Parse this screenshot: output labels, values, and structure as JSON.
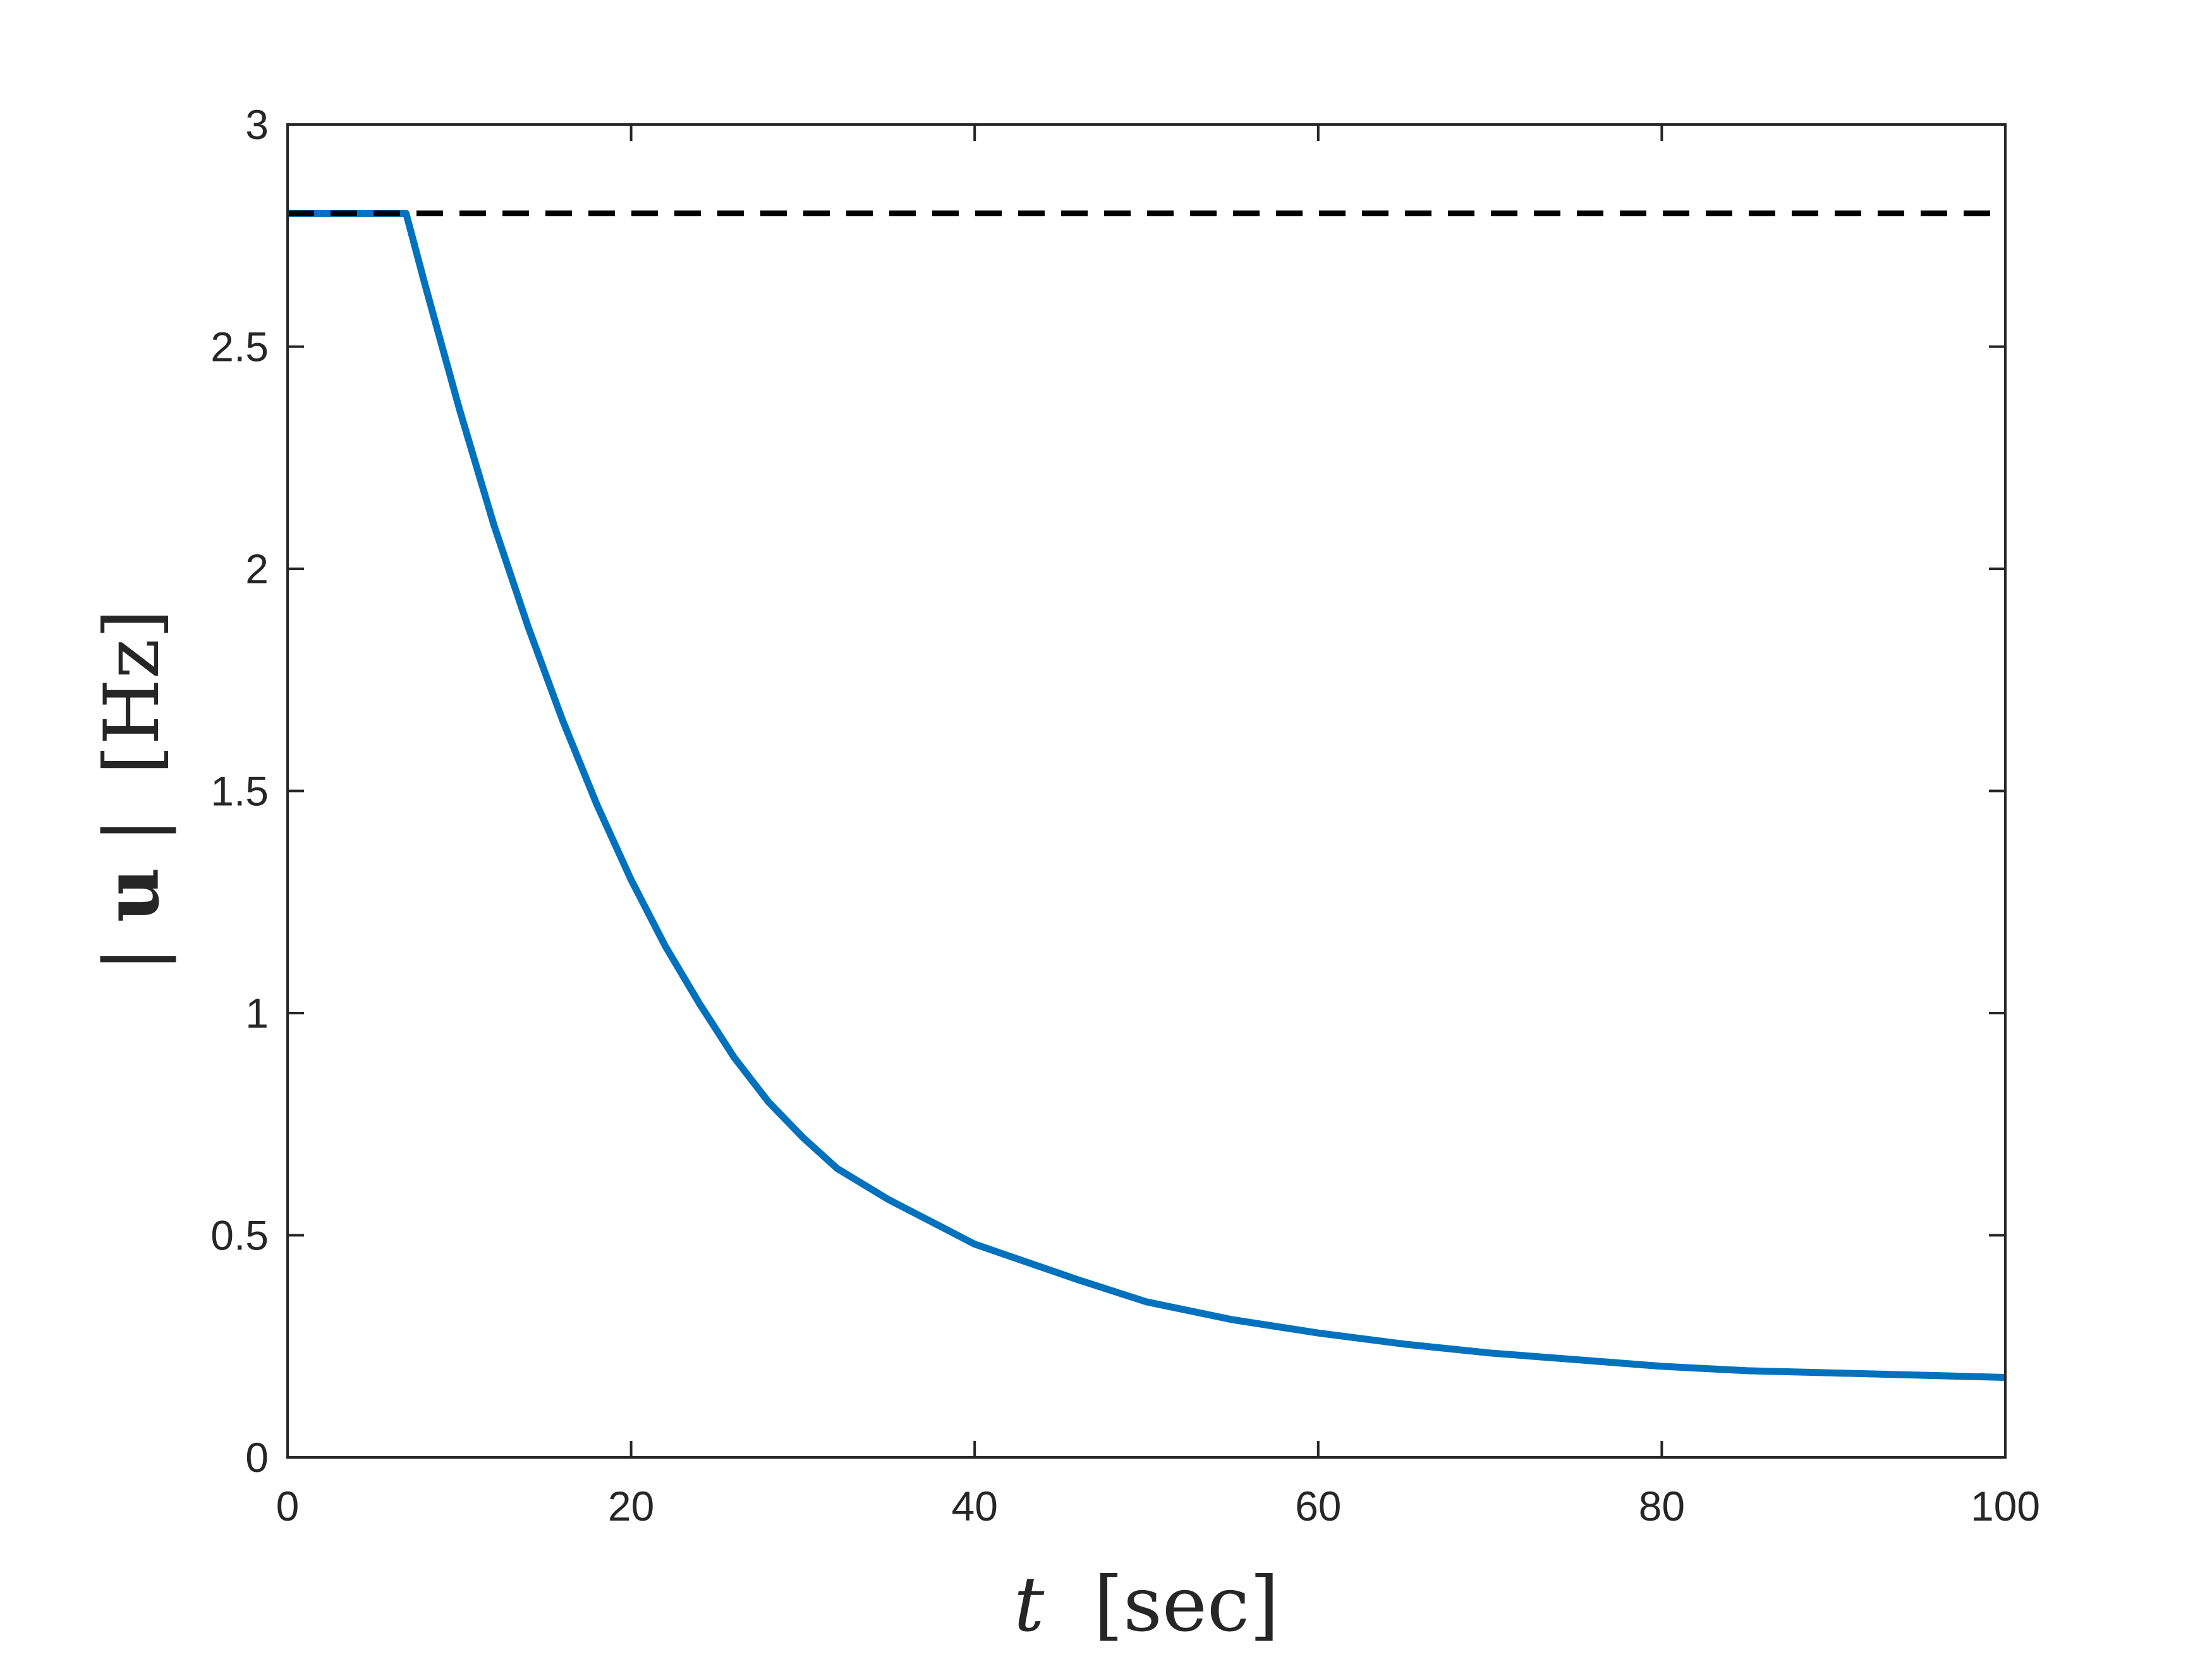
{
  "chart_data": {
    "type": "line",
    "title": "",
    "xlabel": {
      "variable": "t",
      "unit": "[sec]"
    },
    "ylabel": {
      "pipe_open": "|",
      "variable": "u",
      "pipe_close": "|",
      "unit": "[Hz]"
    },
    "xlim": [
      0,
      100
    ],
    "ylim": [
      0,
      3
    ],
    "xticks": [
      "0",
      "20",
      "40",
      "60",
      "80",
      "100"
    ],
    "yticks": [
      "0",
      "0.5",
      "1",
      "1.5",
      "2",
      "2.5",
      "3"
    ],
    "grid": false,
    "legend": "none",
    "series": [
      {
        "color": "#0072BD",
        "style": "solid",
        "x": [
          0,
          2,
          4,
          6,
          6.9,
          8,
          10,
          12,
          14,
          16,
          18,
          20,
          22,
          24,
          26,
          28,
          30,
          32,
          35,
          38,
          40,
          43,
          46,
          50,
          55,
          60,
          65,
          70,
          75,
          80,
          85,
          90,
          95,
          100
        ],
        "y": [
          2.8,
          2.8,
          2.8,
          2.8,
          2.8,
          2.64,
          2.36,
          2.1,
          1.87,
          1.66,
          1.47,
          1.3,
          1.15,
          1.02,
          0.9,
          0.8,
          0.72,
          0.65,
          0.58,
          0.52,
          0.48,
          0.44,
          0.4,
          0.35,
          0.31,
          0.28,
          0.255,
          0.235,
          0.22,
          0.205,
          0.195,
          0.19,
          0.185,
          0.18
        ]
      },
      {
        "color": "#000000",
        "style": "dashed",
        "x": [
          0,
          100
        ],
        "y": [
          2.8,
          2.8
        ]
      }
    ]
  }
}
